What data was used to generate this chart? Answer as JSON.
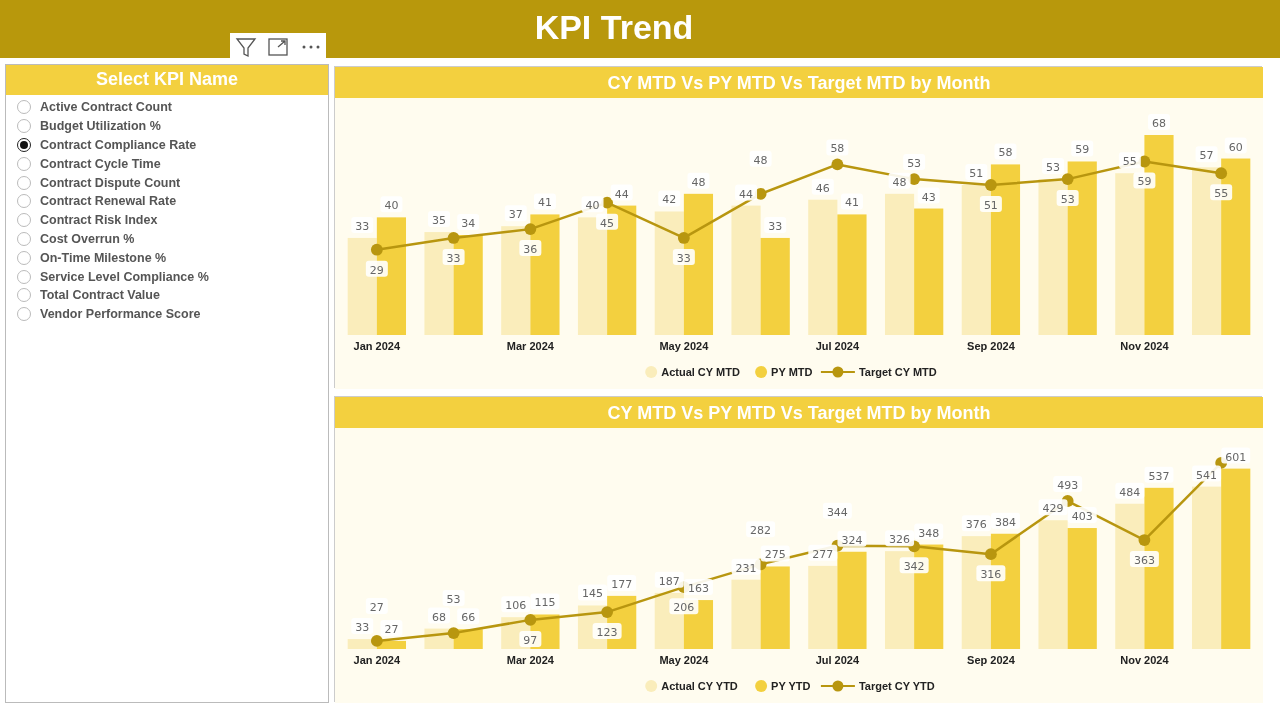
{
  "chart_data": [
    {
      "type": "other",
      "title": "KPI Trend",
      "subtitle": "Select KPI Name",
      "annotations": [
        "Active Contract Count",
        "Budget Utilization %",
        "Contract Compliance Rate",
        "Contract Cycle Time",
        "Contract Dispute Count",
        "Contract Renewal Rate",
        "Contract Risk Index",
        "Cost Overrun %",
        "On-Time Milestone %",
        "Service Level Compliance %",
        "Total Contract Value",
        "Vendor Performance Score"
      ]
    },
    {
      "type": "bar",
      "title": "CY MTD Vs PY MTD Vs Target MTD by Month",
      "categories": [
        "Jan 2024",
        null,
        "Mar 2024",
        null,
        "May 2024",
        null,
        "Jul 2024",
        null,
        "Sep 2024",
        null,
        "Nov 2024",
        null
      ],
      "legend": "bottom",
      "marker": "circle",
      "data_labels": true,
      "series": [
        {
          "name": "Actual CY MTD",
          "type": "bar",
          "color": "#faedbb",
          "values": [
            33,
            35,
            37,
            40,
            42,
            44,
            46,
            48,
            51,
            53,
            55,
            57
          ]
        },
        {
          "name": "PY MTD",
          "type": "bar",
          "color": "#f3d03f",
          "values": [
            40,
            34,
            41,
            44,
            48,
            33,
            41,
            43,
            58,
            59,
            68,
            60
          ]
        },
        {
          "name": "Target CY MTD",
          "type": "line",
          "color": "#b8960f",
          "values": [
            29,
            33,
            36,
            45,
            33,
            48,
            58,
            53,
            51,
            53,
            59,
            55
          ]
        }
      ]
    },
    {
      "type": "bar",
      "title": "CY MTD Vs PY MTD Vs Target MTD by Month",
      "categories": [
        "Jan 2024",
        null,
        "Mar 2024",
        null,
        "May 2024",
        null,
        "Jul 2024",
        null,
        "Sep 2024",
        null,
        "Nov 2024",
        null
      ],
      "legend": "bottom",
      "marker": "circle",
      "series": [
        {
          "name": "Actual CY YTD",
          "type": "bar",
          "color": "#faedbb",
          "values": [
            33,
            68,
            106,
            145,
            187,
            231,
            277,
            326,
            376,
            429,
            484,
            541
          ],
          "value_labels": [
            "33",
            "68",
            "106",
            "145",
            "187",
            "231",
            "277",
            "326",
            "376",
            "429",
            "484",
            "541"
          ]
        },
        {
          "name": "PY YTD",
          "type": "bar",
          "color": "#f3d03f",
          "values": [
            27,
            66,
            115,
            177,
            163,
            275,
            324,
            348,
            384,
            403,
            537,
            601
          ],
          "value_labels": [
            "27",
            "66",
            "115",
            "177",
            "163",
            "275",
            "324",
            "348",
            "384",
            "403",
            "537",
            "601"
          ]
        },
        {
          "name": "Target CY YTD",
          "type": "line",
          "color": "#b8960f",
          "values": [
            27,
            53,
            97,
            123,
            206,
            282,
            344,
            342,
            316,
            493,
            363,
            620
          ],
          "value_labels": [
            "27",
            "53",
            "97",
            "123",
            "206",
            "282",
            "344",
            "342",
            "316",
            "493",
            "363",
            null
          ]
        }
      ]
    }
  ]
}
